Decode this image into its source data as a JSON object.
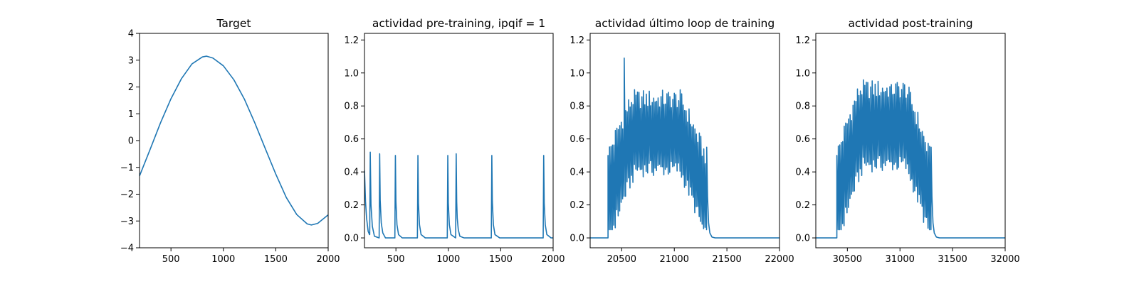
{
  "figure": {
    "line_color": "#1f77b4",
    "background": "#ffffff"
  },
  "chart_data": [
    {
      "type": "line",
      "title": "Target",
      "xlabel": "",
      "ylabel": "",
      "xlim": [
        200,
        2000
      ],
      "ylim": [
        -4,
        4
      ],
      "xticks": [
        500,
        1000,
        1500,
        2000
      ],
      "xtick_labels": [
        "500",
        "1000",
        "1500",
        "2000"
      ],
      "yticks": [
        -4,
        -3,
        -2,
        -1,
        0,
        1,
        2,
        3,
        4
      ],
      "ytick_labels": [
        "−4",
        "−3",
        "−2",
        "−1",
        "0",
        "1",
        "2",
        "3",
        "4"
      ],
      "grid": false,
      "series": [
        {
          "x": [
            200,
            300,
            400,
            500,
            600,
            700,
            800,
            840,
            900,
            1000,
            1100,
            1200,
            1300,
            1400,
            1500,
            1600,
            1700,
            1800,
            1840,
            1900,
            2000
          ],
          "y": [
            -1.32,
            -0.34,
            0.66,
            1.56,
            2.31,
            2.86,
            3.12,
            3.15,
            3.08,
            2.79,
            2.27,
            1.55,
            0.66,
            -0.3,
            -1.25,
            -2.12,
            -2.76,
            -3.11,
            -3.15,
            -3.09,
            -2.77
          ]
        }
      ]
    },
    {
      "type": "line",
      "title": "actividad pre-training, ipqif = 1",
      "xlabel": "",
      "ylabel": "",
      "xlim": [
        200,
        2000
      ],
      "ylim": [
        -0.06,
        1.24
      ],
      "xticks": [
        500,
        1000,
        1500,
        2000
      ],
      "xtick_labels": [
        "500",
        "1000",
        "1500",
        "2000"
      ],
      "yticks": [
        0,
        0.2,
        0.4,
        0.6,
        0.8,
        1.0,
        1.2
      ],
      "ytick_labels": [
        "0.0",
        "0.2",
        "0.4",
        "0.6",
        "0.8",
        "1.0",
        "1.2"
      ],
      "grid": false,
      "series": [
        {
          "x": [
            200,
            210,
            220,
            235,
            248,
            250,
            255,
            262,
            275,
            295,
            340,
            345,
            350,
            360,
            375,
            400,
            490,
            495,
            500,
            510,
            525,
            560,
            705,
            710,
            715,
            725,
            740,
            780,
            990,
            995,
            1000,
            1010,
            1025,
            1070,
            1075,
            1080,
            1085,
            1095,
            1110,
            1150,
            1410,
            1415,
            1420,
            1430,
            1445,
            1490,
            1905,
            1910,
            1915,
            1925,
            1940,
            1980,
            2000
          ],
          "y": [
            0.41,
            0.22,
            0.12,
            0.04,
            0.02,
            0.02,
            0.52,
            0.2,
            0.07,
            0.01,
            0.0,
            0.51,
            0.23,
            0.09,
            0.03,
            0.0,
            0.0,
            0.5,
            0.22,
            0.08,
            0.02,
            0.0,
            0.0,
            0.5,
            0.21,
            0.08,
            0.02,
            0.0,
            0.0,
            0.5,
            0.21,
            0.08,
            0.02,
            0.0,
            0.51,
            0.22,
            0.12,
            0.05,
            0.01,
            0.0,
            0.0,
            0.5,
            0.22,
            0.08,
            0.02,
            0.0,
            0.0,
            0.5,
            0.21,
            0.08,
            0.02,
            0.0,
            0.0
          ]
        }
      ]
    },
    {
      "type": "line",
      "title": "actividad último loop de training",
      "xlabel": "",
      "ylabel": "",
      "xlim": [
        20200,
        22000
      ],
      "ylim": [
        -0.06,
        1.24
      ],
      "xticks": [
        20500,
        21000,
        21500,
        22000
      ],
      "xtick_labels": [
        "20500",
        "21000",
        "21500",
        "22000"
      ],
      "yticks": [
        0,
        0.2,
        0.4,
        0.6,
        0.8,
        1.0,
        1.2
      ],
      "ytick_labels": [
        "0.0",
        "0.2",
        "0.4",
        "0.6",
        "0.8",
        "1.0",
        "1.2"
      ],
      "grid": false,
      "burst": {
        "start": 20370,
        "end": 21310,
        "period": 14,
        "onset_peak": 0.5,
        "peak": 0.84,
        "trough": 0.42,
        "max_spike": 1.09,
        "max_spike_x": 20530
      }
    },
    {
      "type": "line",
      "title": "actividad post-training",
      "xlabel": "",
      "ylabel": "",
      "xlim": [
        30200,
        32000
      ],
      "ylim": [
        -0.06,
        1.24
      ],
      "xticks": [
        30500,
        31000,
        31500,
        32000
      ],
      "xtick_labels": [
        "30500",
        "31000",
        "31500",
        "32000"
      ],
      "yticks": [
        0,
        0.2,
        0.4,
        0.6,
        0.8,
        1.0,
        1.2
      ],
      "ytick_labels": [
        "0.0",
        "0.2",
        "0.4",
        "0.6",
        "0.8",
        "1.0",
        "1.2"
      ],
      "grid": false,
      "burst": {
        "start": 30400,
        "end": 31300,
        "period": 14,
        "onset_peak": 0.5,
        "peak": 0.9,
        "trough": 0.45,
        "max_spike": 0.93,
        "max_spike_x": 30920
      }
    }
  ]
}
